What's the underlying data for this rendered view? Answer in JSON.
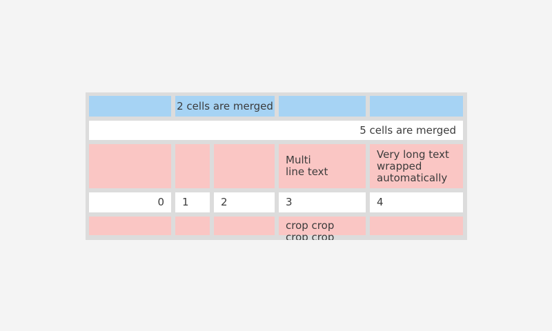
{
  "colors": {
    "page_background": "#f4f4f4",
    "table_background": "#dcdcdc",
    "header_cell_blue": "#a6d3f4",
    "highlight_cell_pink": "#fac6c4",
    "default_cell_white": "#ffffff",
    "text": "#3b3b3b"
  },
  "table": {
    "rows": [
      {
        "cells": [
          {
            "text": ""
          },
          {
            "text": "2 cells are merged"
          },
          {
            "text": ""
          },
          {
            "text": ""
          }
        ]
      },
      {
        "cells": [
          {
            "text": "5 cells are merged"
          }
        ]
      },
      {
        "cells": [
          {
            "text": ""
          },
          {
            "text": ""
          },
          {
            "text": ""
          },
          {
            "text": "Multi\nline text"
          },
          {
            "text": "Very long text wrapped automatically"
          }
        ]
      },
      {
        "cells": [
          {
            "text": "0"
          },
          {
            "text": "1"
          },
          {
            "text": "2"
          },
          {
            "text": "3"
          },
          {
            "text": "4"
          }
        ]
      },
      {
        "cells": [
          {
            "text": ""
          },
          {
            "text": ""
          },
          {
            "text": ""
          },
          {
            "text": "crop crop crop crop"
          },
          {
            "text": ""
          }
        ]
      }
    ]
  }
}
